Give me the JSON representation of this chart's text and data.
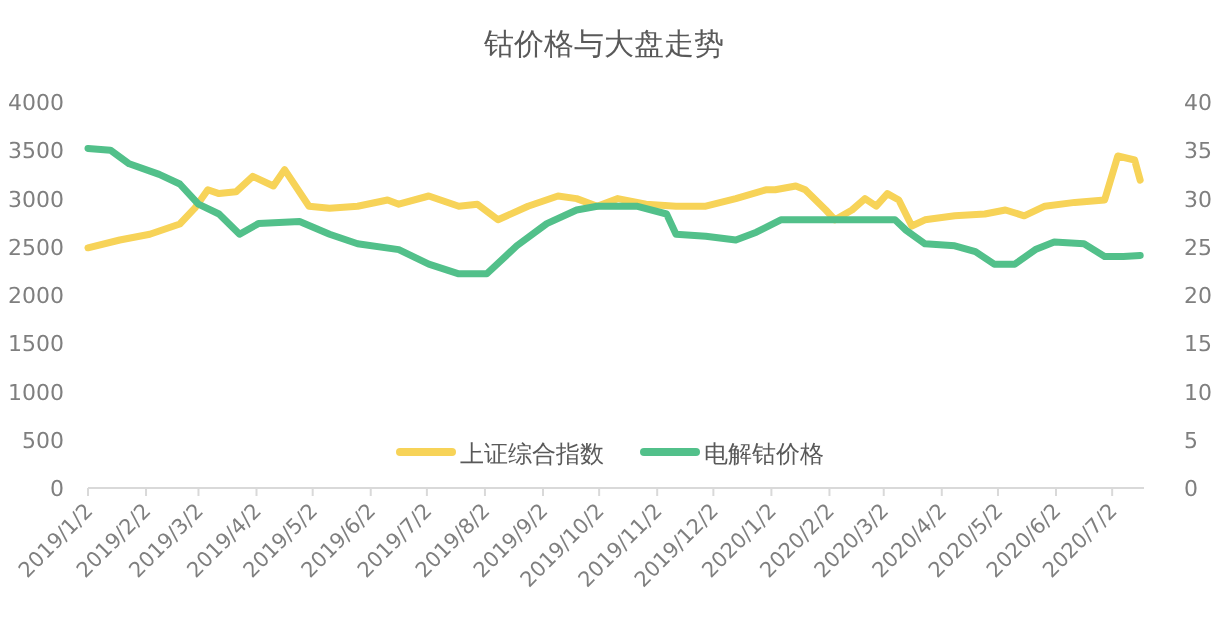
{
  "chart_data": {
    "type": "line",
    "title": "钴价格与大盘走势",
    "legend": "bottom",
    "grid": false,
    "marker": "none",
    "line_style": "solid",
    "xlim": [
      "2019-01-02",
      "2020-07-19"
    ],
    "xticks": [
      {
        "value": "2019-01-02",
        "label": "2019/1/2"
      },
      {
        "value": "2019-02-02",
        "label": "2019/2/2"
      },
      {
        "value": "2019-03-02",
        "label": "2019/3/2"
      },
      {
        "value": "2019-04-02",
        "label": "2019/4/2"
      },
      {
        "value": "2019-05-02",
        "label": "2019/5/2"
      },
      {
        "value": "2019-06-02",
        "label": "2019/6/2"
      },
      {
        "value": "2019-07-02",
        "label": "2019/7/2"
      },
      {
        "value": "2019-08-02",
        "label": "2019/8/2"
      },
      {
        "value": "2019-09-02",
        "label": "2019/9/2"
      },
      {
        "value": "2019-10-02",
        "label": "2019/10/2"
      },
      {
        "value": "2019-11-02",
        "label": "2019/11/2"
      },
      {
        "value": "2019-12-02",
        "label": "2019/12/2"
      },
      {
        "value": "2020-01-02",
        "label": "2020/1/2"
      },
      {
        "value": "2020-02-02",
        "label": "2020/2/2"
      },
      {
        "value": "2020-03-02",
        "label": "2020/3/2"
      },
      {
        "value": "2020-04-02",
        "label": "2020/4/2"
      },
      {
        "value": "2020-05-02",
        "label": "2020/5/2"
      },
      {
        "value": "2020-06-02",
        "label": "2020/6/2"
      },
      {
        "value": "2020-07-02",
        "label": "2020/7/2"
      }
    ],
    "ylim": [
      0,
      4000
    ],
    "yticks": [
      0,
      500,
      1000,
      1500,
      2000,
      2500,
      3000,
      3500,
      4000
    ],
    "y2lim": [
      0,
      40
    ],
    "y2ticks": [
      0,
      5,
      10,
      15,
      20,
      25,
      30,
      35,
      40
    ],
    "series": [
      {
        "name": "上证综合指数",
        "color": "#f7d358",
        "x": [
          "2019-01-02",
          "2019-01-19",
          "2019-02-04",
          "2019-02-20",
          "2019-02-28",
          "2019-03-07",
          "2019-03-13",
          "2019-03-22",
          "2019-03-31",
          "2019-04-11",
          "2019-04-17",
          "2019-04-30",
          "2019-05-11",
          "2019-05-26",
          "2019-06-11",
          "2019-06-17",
          "2019-07-03",
          "2019-07-19",
          "2019-07-29",
          "2019-08-09",
          "2019-08-25",
          "2019-09-10",
          "2019-09-20",
          "2019-10-01",
          "2019-10-12",
          "2019-10-27",
          "2019-11-12",
          "2019-11-28",
          "2019-12-14",
          "2019-12-30",
          "2020-01-04",
          "2020-01-15",
          "2020-01-20",
          "2020-01-31",
          "2020-02-05",
          "2020-02-14",
          "2020-02-21",
          "2020-02-27",
          "2020-03-04",
          "2020-03-10",
          "2020-03-17",
          "2020-03-24",
          "2020-04-09",
          "2020-04-25",
          "2020-05-06",
          "2020-05-16",
          "2020-05-27",
          "2020-06-12",
          "2020-06-28",
          "2020-07-05",
          "2020-07-14",
          "2020-07-17"
        ],
        "values": [
          2490,
          2570,
          2630,
          2735,
          2900,
          3090,
          3050,
          3070,
          3230,
          3130,
          3300,
          2920,
          2900,
          2920,
          2985,
          2940,
          3025,
          2920,
          2940,
          2780,
          2920,
          3025,
          3000,
          2920,
          3000,
          2940,
          2920,
          2920,
          3000,
          3090,
          3090,
          3130,
          3090,
          2880,
          2780,
          2880,
          3000,
          2920,
          3050,
          2985,
          2715,
          2780,
          2820,
          2840,
          2880,
          2820,
          2920,
          2960,
          2985,
          3440,
          3400,
          3190
        ]
      },
      {
        "name": "电解钴价格",
        "color": "#52c08a",
        "axis": "y2",
        "x": [
          "2019-01-02",
          "2019-01-14",
          "2019-01-24",
          "2019-02-09",
          "2019-02-20",
          "2019-03-02",
          "2019-03-13",
          "2019-03-24",
          "2019-04-03",
          "2019-04-25",
          "2019-05-11",
          "2019-05-26",
          "2019-06-17",
          "2019-07-03",
          "2019-07-19",
          "2019-08-03",
          "2019-08-19",
          "2019-09-04",
          "2019-09-20",
          "2019-10-01",
          "2019-10-22",
          "2019-11-07",
          "2019-11-12",
          "2019-11-28",
          "2019-12-14",
          "2019-12-25",
          "2020-01-07",
          "2020-01-15",
          "2020-02-05",
          "2020-03-08",
          "2020-03-14",
          "2020-03-24",
          "2020-04-09",
          "2020-04-20",
          "2020-04-30",
          "2020-05-11",
          "2020-05-22",
          "2020-06-01",
          "2020-06-17",
          "2020-06-28",
          "2020-07-08",
          "2020-07-17"
        ],
        "values": [
          35.2,
          35.0,
          33.6,
          32.5,
          31.5,
          29.4,
          28.4,
          26.3,
          27.4,
          27.6,
          26.3,
          25.3,
          24.7,
          23.2,
          22.2,
          22.2,
          25.1,
          27.4,
          28.8,
          29.2,
          29.2,
          28.4,
          26.3,
          26.1,
          25.7,
          26.5,
          27.8,
          27.8,
          27.8,
          27.8,
          26.7,
          25.3,
          25.1,
          24.5,
          23.2,
          23.2,
          24.7,
          25.5,
          25.3,
          24.0,
          24.0,
          24.1
        ]
      }
    ]
  }
}
